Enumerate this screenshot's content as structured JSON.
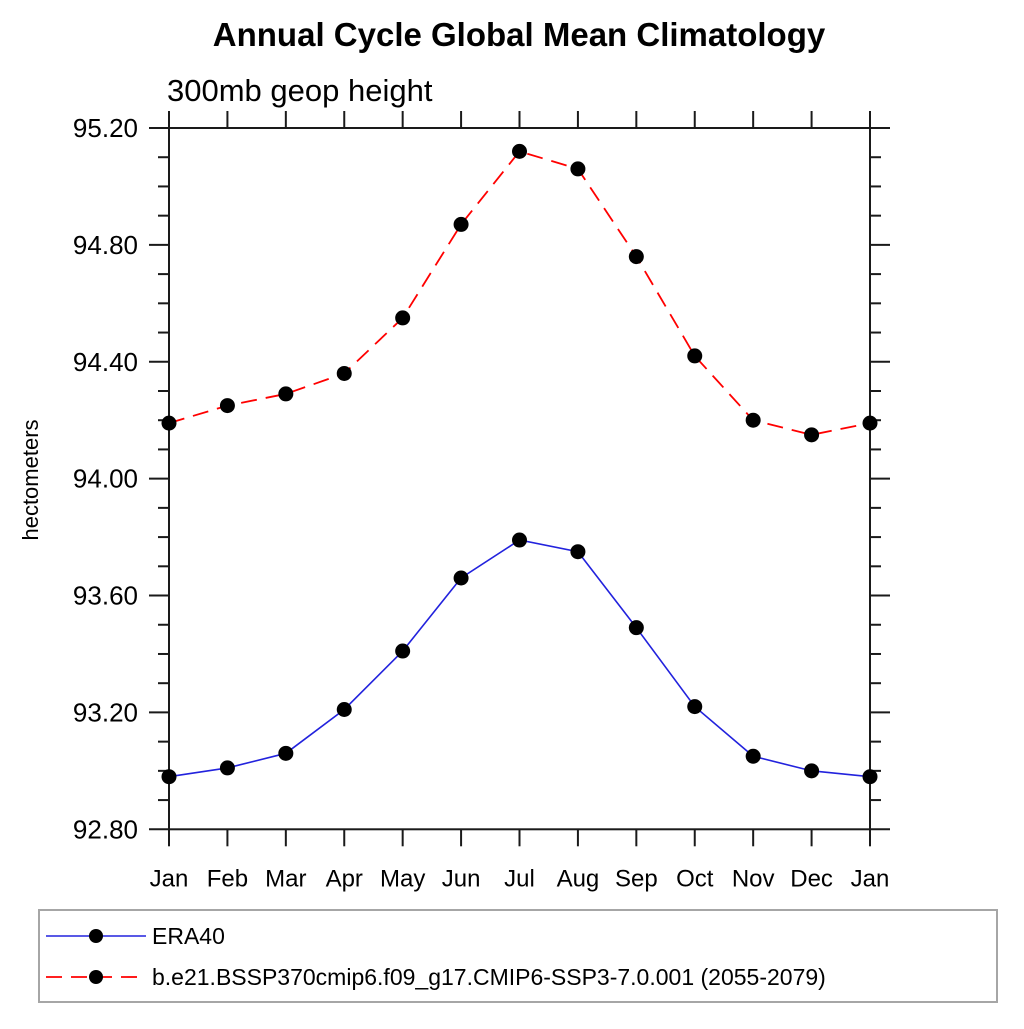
{
  "chart_data": {
    "type": "line",
    "title": "Annual Cycle Global Mean Climatology",
    "subtitle": "300mb geop height",
    "ylabel": "hectometers",
    "xlabel": "",
    "categories": [
      "Jan",
      "Feb",
      "Mar",
      "Apr",
      "May",
      "Jun",
      "Jul",
      "Aug",
      "Sep",
      "Oct",
      "Nov",
      "Dec",
      "Jan"
    ],
    "series": [
      {
        "name": "ERA40",
        "color": "#2222dd",
        "line_style": "solid",
        "marker": "filled-circle",
        "marker_color": "#000000",
        "values": [
          92.98,
          93.01,
          93.06,
          93.21,
          93.41,
          93.66,
          93.79,
          93.75,
          93.49,
          93.22,
          93.05,
          93.0,
          92.98
        ]
      },
      {
        "name": "b.e21.BSSP370cmip6.f09_g17.CMIP6-SSP3-7.0.001 (2055-2079)",
        "color": "#ff0000",
        "line_style": "dashed",
        "marker": "filled-circle",
        "marker_color": "#000000",
        "values": [
          94.19,
          94.25,
          94.29,
          94.36,
          94.55,
          94.87,
          95.12,
          95.06,
          94.76,
          94.42,
          94.2,
          94.15,
          94.19
        ]
      }
    ],
    "ylim": [
      92.8,
      95.2
    ],
    "ytick_major_step": 0.4,
    "ytick_minor_step": 0.1,
    "ytick_labels": [
      "92.80",
      "93.20",
      "93.60",
      "94.00",
      "94.40",
      "94.80",
      "95.20"
    ],
    "grid": false,
    "legend_position": "bottom",
    "axis_color": "#1a1a1a",
    "legend_border_color": "#a6a6a6"
  }
}
